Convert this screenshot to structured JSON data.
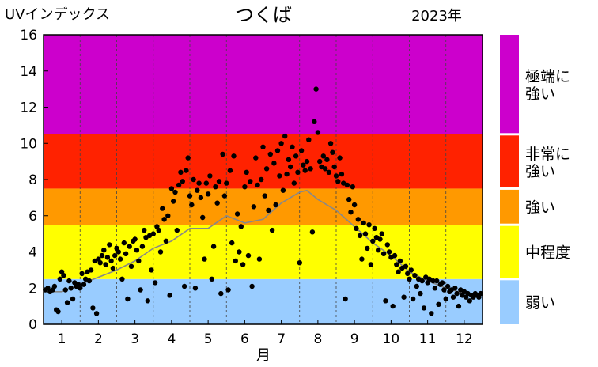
{
  "chart_data": {
    "type": "scatter",
    "title": "つくば",
    "year_label": "2023年",
    "ylabel": "UVインデックス",
    "xlabel": "月",
    "ylim": [
      0,
      16
    ],
    "xlim": [
      0.5,
      12.5
    ],
    "yticks": [
      0,
      2,
      4,
      6,
      8,
      10,
      12,
      14,
      16
    ],
    "xticks": [
      "1",
      "2",
      "3",
      "4",
      "5",
      "6",
      "7",
      "8",
      "9",
      "10",
      "11",
      "12"
    ],
    "bands": [
      {
        "label": "弱い",
        "min": 0,
        "max": 2.5,
        "color": "#99ccff"
      },
      {
        "label": "中程度",
        "min": 2.5,
        "max": 5.5,
        "color": "#ffff00"
      },
      {
        "label": "強い",
        "min": 5.5,
        "max": 7.5,
        "color": "#ff9900"
      },
      {
        "label": "非常に強い",
        "min": 7.5,
        "max": 10.5,
        "color": "#ff2200"
      },
      {
        "label": "極端に強い",
        "min": 10.5,
        "max": 16,
        "color": "#cc00cc"
      }
    ],
    "climatology_line": {
      "color": "#888888",
      "x": [
        0.5,
        1.0,
        1.5,
        2.0,
        2.5,
        3.0,
        3.5,
        4.0,
        4.5,
        5.0,
        5.5,
        6.0,
        6.5,
        7.0,
        7.5,
        7.7,
        8.0,
        8.5,
        9.0,
        9.5,
        10.0,
        10.5,
        11.0,
        11.5,
        12.0,
        12.5
      ],
      "y": [
        1.8,
        1.8,
        2.2,
        2.6,
        3.0,
        3.5,
        4.2,
        4.6,
        5.3,
        5.3,
        6.0,
        5.6,
        5.8,
        6.7,
        7.3,
        7.4,
        6.9,
        6.3,
        5.4,
        4.5,
        3.8,
        2.9,
        2.4,
        2.0,
        1.7,
        1.7
      ]
    },
    "points": [
      [
        0.55,
        1.9
      ],
      [
        0.62,
        2.0
      ],
      [
        0.68,
        1.8
      ],
      [
        0.75,
        1.9
      ],
      [
        0.8,
        2.1
      ],
      [
        0.85,
        0.8
      ],
      [
        0.9,
        0.7
      ],
      [
        0.95,
        2.5
      ],
      [
        1.0,
        2.9
      ],
      [
        1.05,
        2.7
      ],
      [
        1.1,
        1.9
      ],
      [
        1.15,
        1.2
      ],
      [
        1.2,
        2.4
      ],
      [
        1.25,
        2.0
      ],
      [
        1.3,
        1.4
      ],
      [
        1.35,
        2.3
      ],
      [
        1.4,
        2.1
      ],
      [
        1.45,
        2.2
      ],
      [
        1.5,
        2.0
      ],
      [
        1.55,
        2.8
      ],
      [
        1.6,
        2.2
      ],
      [
        1.65,
        2.5
      ],
      [
        1.7,
        2.9
      ],
      [
        1.75,
        2.4
      ],
      [
        1.8,
        3.0
      ],
      [
        1.85,
        0.9
      ],
      [
        1.9,
        3.5
      ],
      [
        1.95,
        0.6
      ],
      [
        2.0,
        3.6
      ],
      [
        2.05,
        3.4
      ],
      [
        2.1,
        3.8
      ],
      [
        2.15,
        4.1
      ],
      [
        2.2,
        3.3
      ],
      [
        2.25,
        3.7
      ],
      [
        2.3,
        4.4
      ],
      [
        2.35,
        3.5
      ],
      [
        2.4,
        3.1
      ],
      [
        2.45,
        3.8
      ],
      [
        2.5,
        4.2
      ],
      [
        2.55,
        4.0
      ],
      [
        2.6,
        3.6
      ],
      [
        2.65,
        2.5
      ],
      [
        2.7,
        4.5
      ],
      [
        2.75,
        3.9
      ],
      [
        2.8,
        1.4
      ],
      [
        2.85,
        4.3
      ],
      [
        2.9,
        3.2
      ],
      [
        2.95,
        4.6
      ],
      [
        3.0,
        4.7
      ],
      [
        3.05,
        4.1
      ],
      [
        3.1,
        3.5
      ],
      [
        3.15,
        1.9
      ],
      [
        3.2,
        4.3
      ],
      [
        3.25,
        5.2
      ],
      [
        3.3,
        4.8
      ],
      [
        3.35,
        1.3
      ],
      [
        3.4,
        4.9
      ],
      [
        3.45,
        3.0
      ],
      [
        3.5,
        5.0
      ],
      [
        3.55,
        2.3
      ],
      [
        3.6,
        5.4
      ],
      [
        3.65,
        5.2
      ],
      [
        3.7,
        4.0
      ],
      [
        3.75,
        6.4
      ],
      [
        3.8,
        5.8
      ],
      [
        3.85,
        4.6
      ],
      [
        3.9,
        6.0
      ],
      [
        3.95,
        1.6
      ],
      [
        4.0,
        7.5
      ],
      [
        4.05,
        6.8
      ],
      [
        4.1,
        7.3
      ],
      [
        4.15,
        5.2
      ],
      [
        4.2,
        7.7
      ],
      [
        4.25,
        8.4
      ],
      [
        4.3,
        7.9
      ],
      [
        4.35,
        2.1
      ],
      [
        4.4,
        8.5
      ],
      [
        4.45,
        9.2
      ],
      [
        4.5,
        7.1
      ],
      [
        4.55,
        6.6
      ],
      [
        4.6,
        8.0
      ],
      [
        4.65,
        2.0
      ],
      [
        4.7,
        7.4
      ],
      [
        4.75,
        7.8
      ],
      [
        4.8,
        7.0
      ],
      [
        4.85,
        5.9
      ],
      [
        4.9,
        3.6
      ],
      [
        4.95,
        7.8
      ],
      [
        5.0,
        7.2
      ],
      [
        5.05,
        8.2
      ],
      [
        5.1,
        2.5
      ],
      [
        5.15,
        4.3
      ],
      [
        5.2,
        7.6
      ],
      [
        5.25,
        6.7
      ],
      [
        5.3,
        7.9
      ],
      [
        5.35,
        1.7
      ],
      [
        5.4,
        9.4
      ],
      [
        5.45,
        7.1
      ],
      [
        5.5,
        7.8
      ],
      [
        5.55,
        1.9
      ],
      [
        5.6,
        8.5
      ],
      [
        5.65,
        4.5
      ],
      [
        5.7,
        9.3
      ],
      [
        5.75,
        3.5
      ],
      [
        5.8,
        6.1
      ],
      [
        5.85,
        4.0
      ],
      [
        5.9,
        5.4
      ],
      [
        5.95,
        3.3
      ],
      [
        6.0,
        7.6
      ],
      [
        6.05,
        8.4
      ],
      [
        6.1,
        3.8
      ],
      [
        6.15,
        7.9
      ],
      [
        6.2,
        2.1
      ],
      [
        6.25,
        6.5
      ],
      [
        6.3,
        9.2
      ],
      [
        6.35,
        7.7
      ],
      [
        6.4,
        3.6
      ],
      [
        6.45,
        8.0
      ],
      [
        6.5,
        9.8
      ],
      [
        6.55,
        7.1
      ],
      [
        6.6,
        8.6
      ],
      [
        6.65,
        6.3
      ],
      [
        6.7,
        9.4
      ],
      [
        6.75,
        5.2
      ],
      [
        6.8,
        8.9
      ],
      [
        6.85,
        6.6
      ],
      [
        6.9,
        9.6
      ],
      [
        6.95,
        8.2
      ],
      [
        7.0,
        10.0
      ],
      [
        7.05,
        7.4
      ],
      [
        7.1,
        10.4
      ],
      [
        7.15,
        8.3
      ],
      [
        7.2,
        9.1
      ],
      [
        7.25,
        8.7
      ],
      [
        7.3,
        9.8
      ],
      [
        7.35,
        7.8
      ],
      [
        7.4,
        9.3
      ],
      [
        7.45,
        8.4
      ],
      [
        7.5,
        3.4
      ],
      [
        7.55,
        9.6
      ],
      [
        7.6,
        8.8
      ],
      [
        7.65,
        8.5
      ],
      [
        7.7,
        9.0
      ],
      [
        7.75,
        10.2
      ],
      [
        7.8,
        8.6
      ],
      [
        7.85,
        5.1
      ],
      [
        7.9,
        11.2
      ],
      [
        7.95,
        13.0
      ],
      [
        8.0,
        10.6
      ],
      [
        8.05,
        9.0
      ],
      [
        8.1,
        8.7
      ],
      [
        8.15,
        9.3
      ],
      [
        8.2,
        8.6
      ],
      [
        8.25,
        9.1
      ],
      [
        8.3,
        8.4
      ],
      [
        8.35,
        10.0
      ],
      [
        8.4,
        9.5
      ],
      [
        8.45,
        8.7
      ],
      [
        8.5,
        8.2
      ],
      [
        8.55,
        7.9
      ],
      [
        8.6,
        9.2
      ],
      [
        8.65,
        8.3
      ],
      [
        8.7,
        7.8
      ],
      [
        8.75,
        1.4
      ],
      [
        8.8,
        7.7
      ],
      [
        8.85,
        6.9
      ],
      [
        8.9,
        6.2
      ],
      [
        8.95,
        7.6
      ],
      [
        9.0,
        6.6
      ],
      [
        9.05,
        5.3
      ],
      [
        9.1,
        5.8
      ],
      [
        9.15,
        4.9
      ],
      [
        9.2,
        3.6
      ],
      [
        9.25,
        5.6
      ],
      [
        9.3,
        5.0
      ],
      [
        9.35,
        4.2
      ],
      [
        9.4,
        5.5
      ],
      [
        9.45,
        3.3
      ],
      [
        9.5,
        4.6
      ],
      [
        9.55,
        5.3
      ],
      [
        9.6,
        4.8
      ],
      [
        9.65,
        4.1
      ],
      [
        9.7,
        4.7
      ],
      [
        9.75,
        5.0
      ],
      [
        9.8,
        3.9
      ],
      [
        9.85,
        1.3
      ],
      [
        9.9,
        4.4
      ],
      [
        9.95,
        4.0
      ],
      [
        10.0,
        3.7
      ],
      [
        10.05,
        1.0
      ],
      [
        10.1,
        3.8
      ],
      [
        10.15,
        3.3
      ],
      [
        10.2,
        2.9
      ],
      [
        10.25,
        3.5
      ],
      [
        10.3,
        3.1
      ],
      [
        10.35,
        1.5
      ],
      [
        10.4,
        3.2
      ],
      [
        10.45,
        2.8
      ],
      [
        10.5,
        2.5
      ],
      [
        10.55,
        3.0
      ],
      [
        10.6,
        1.4
      ],
      [
        10.65,
        2.7
      ],
      [
        10.7,
        2.1
      ],
      [
        10.75,
        2.5
      ],
      [
        10.8,
        1.7
      ],
      [
        10.85,
        2.4
      ],
      [
        10.9,
        0.9
      ],
      [
        10.95,
        2.6
      ],
      [
        11.0,
        2.3
      ],
      [
        11.05,
        2.5
      ],
      [
        11.1,
        0.6
      ],
      [
        11.15,
        2.4
      ],
      [
        11.2,
        2.0
      ],
      [
        11.25,
        2.4
      ],
      [
        11.3,
        1.1
      ],
      [
        11.35,
        2.2
      ],
      [
        11.4,
        2.3
      ],
      [
        11.45,
        1.9
      ],
      [
        11.5,
        1.4
      ],
      [
        11.55,
        2.1
      ],
      [
        11.6,
        1.8
      ],
      [
        11.65,
        1.9
      ],
      [
        11.7,
        1.5
      ],
      [
        11.75,
        2.0
      ],
      [
        11.8,
        1.7
      ],
      [
        11.85,
        1.0
      ],
      [
        11.9,
        1.9
      ],
      [
        11.95,
        1.6
      ],
      [
        12.0,
        1.8
      ],
      [
        12.05,
        1.5
      ],
      [
        12.1,
        1.7
      ],
      [
        12.15,
        1.3
      ],
      [
        12.2,
        1.6
      ],
      [
        12.25,
        1.5
      ],
      [
        12.3,
        1.7
      ],
      [
        12.35,
        1.6
      ],
      [
        12.4,
        1.5
      ],
      [
        12.45,
        1.7
      ]
    ]
  },
  "legend": [
    {
      "line1": "極端に",
      "line2": "強い",
      "color": "#cc00cc",
      "min": 10.5,
      "max": 16
    },
    {
      "line1": "非常に",
      "line2": "強い",
      "color": "#ff2200",
      "min": 7.5,
      "max": 10.5
    },
    {
      "line1": "強い",
      "line2": "",
      "color": "#ff9900",
      "min": 5.5,
      "max": 7.5
    },
    {
      "line1": "中程度",
      "line2": "",
      "color": "#ffff00",
      "min": 2.5,
      "max": 5.5
    },
    {
      "line1": "弱い",
      "line2": "",
      "color": "#99ccff",
      "min": 0,
      "max": 2.5
    }
  ]
}
